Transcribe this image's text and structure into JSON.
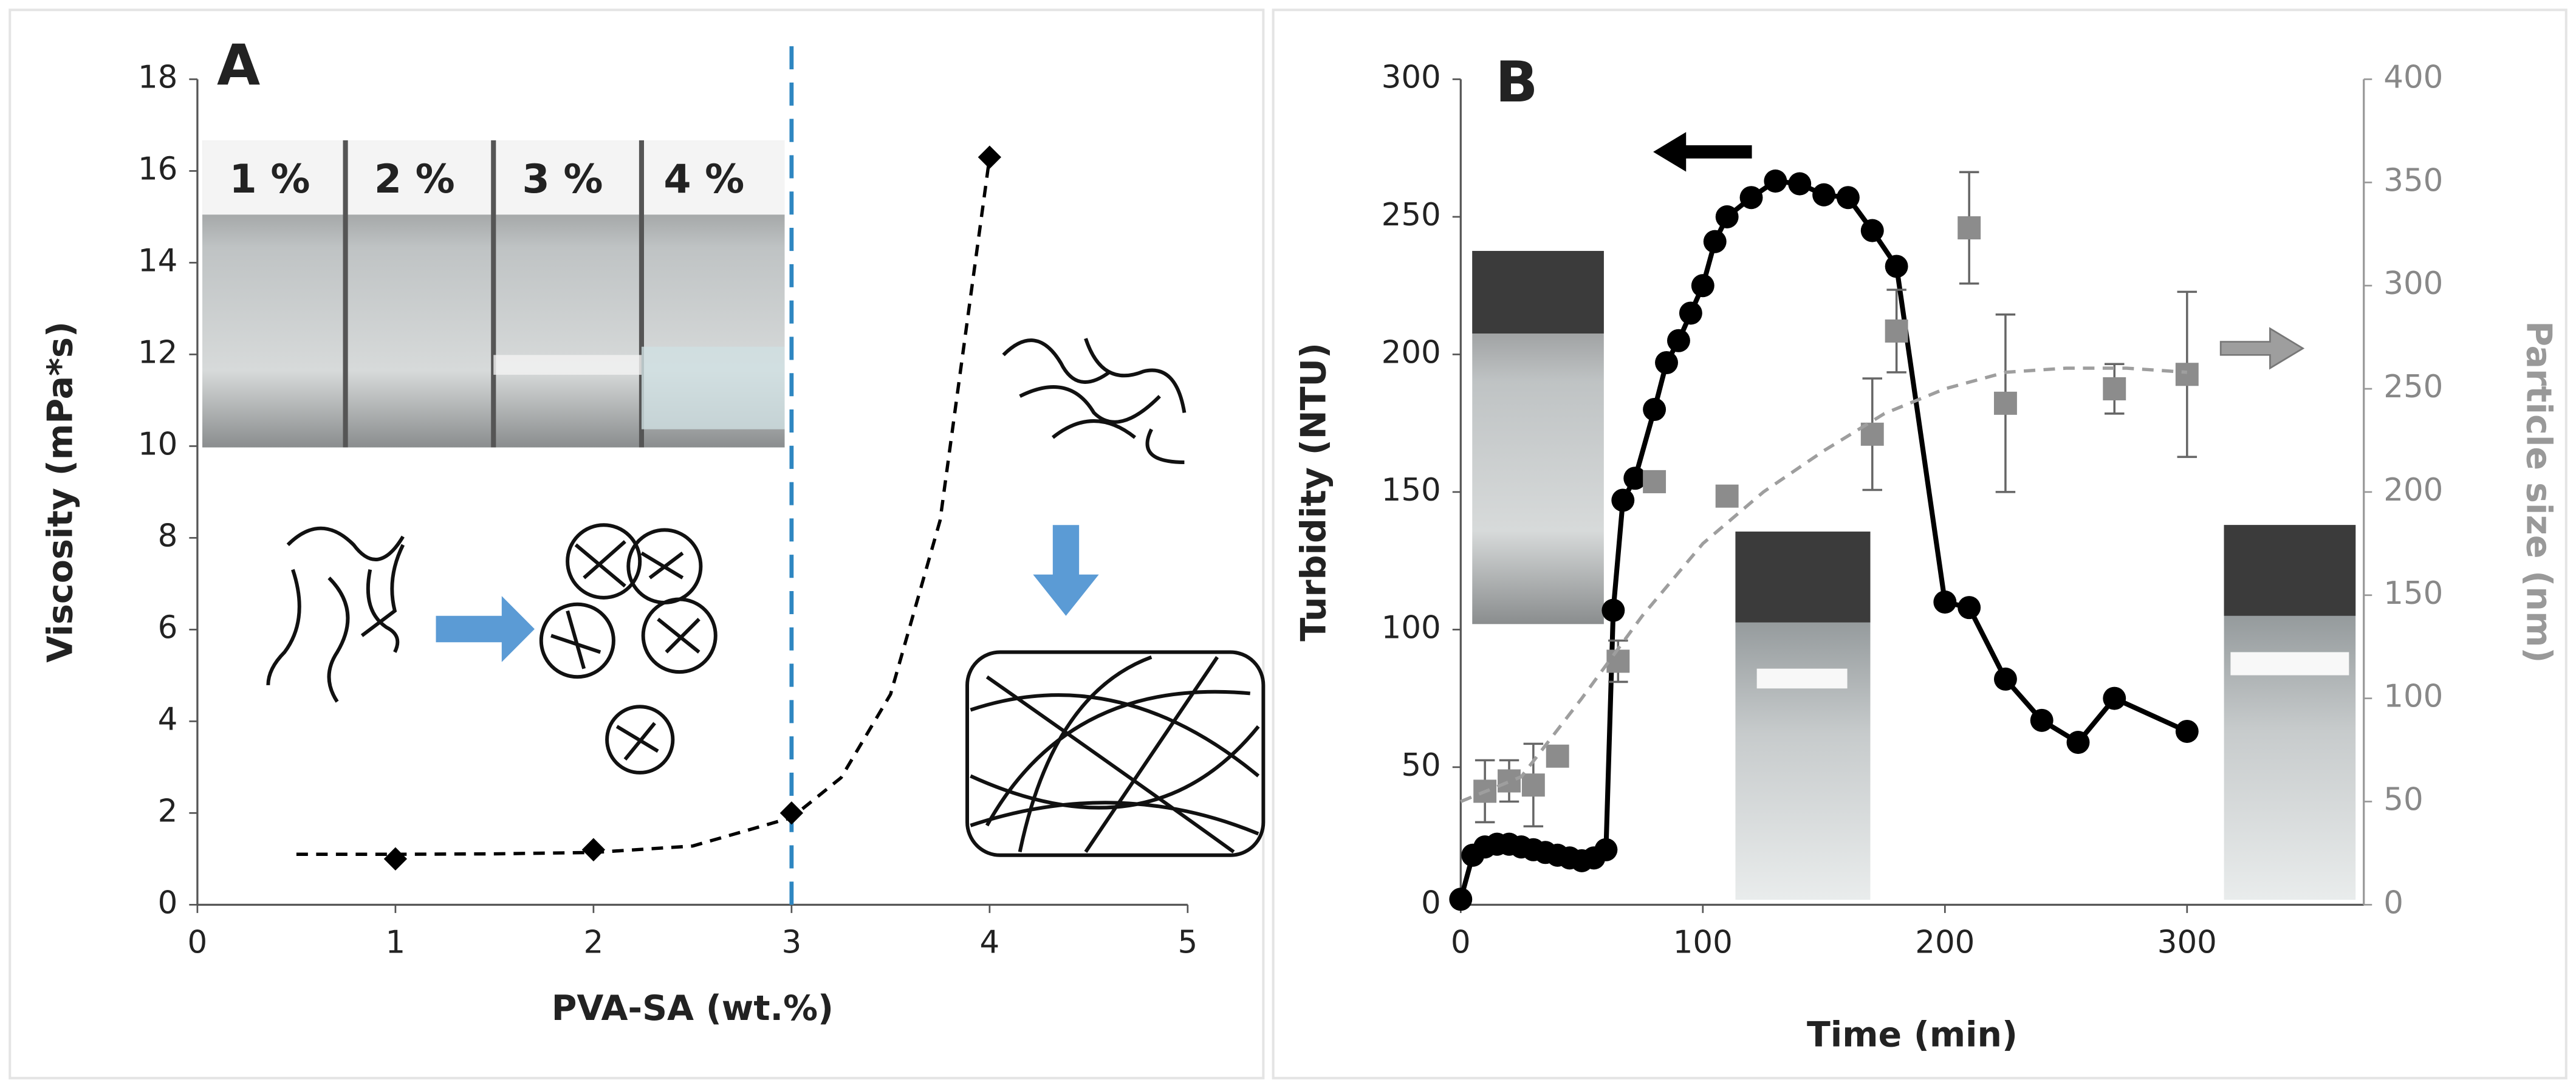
{
  "chart_data": [
    {
      "type": "scatter",
      "panel_label": "A",
      "xlabel": "PVA-SA (wt.%)",
      "ylabel": "Viscosity (mPa*s)",
      "xlim": [
        0,
        5
      ],
      "xticks": [
        0,
        1,
        2,
        3,
        4,
        5
      ],
      "ylim": [
        0,
        18
      ],
      "yticks": [
        0,
        2,
        4,
        6,
        8,
        10,
        12,
        14,
        16,
        18
      ],
      "series": [
        {
          "color": "#000000",
          "marker": "diamond",
          "line_style": "none",
          "x": [
            1,
            2,
            3,
            4
          ],
          "values": [
            1.0,
            1.2,
            2.0,
            16.3
          ]
        },
        {
          "color": "#000000",
          "marker": "none",
          "line_style": "dashed",
          "x": [
            0.5,
            1,
            1.5,
            2,
            2.5,
            3,
            3.25,
            3.5,
            3.75,
            4
          ],
          "values": [
            1.1,
            1.1,
            1.11,
            1.14,
            1.28,
            1.9,
            2.77,
            4.59,
            8.38,
            16.3
          ]
        }
      ],
      "reference_line": {
        "x": 3,
        "color": "#2e86c1"
      },
      "image_labels": [
        "1 %",
        "2 %",
        "3 %",
        "4 %"
      ]
    },
    {
      "type": "line",
      "panel_label": "B",
      "xlabel": "Time (min)",
      "ylabel": "Turbidity (NTU)",
      "y2label": "Particle size (nm)",
      "xlim": [
        0,
        373
      ],
      "xticks": [
        0,
        100,
        200,
        300
      ],
      "ylim": [
        0,
        300
      ],
      "yticks": [
        0,
        50,
        100,
        150,
        200,
        250,
        300
      ],
      "y2lim": [
        0,
        400
      ],
      "y2ticks": [
        0,
        50,
        100,
        150,
        200,
        250,
        300,
        350,
        400
      ],
      "series": [
        {
          "color": "#000000",
          "marker": "circle",
          "line_style": "solid",
          "x": [
            0,
            5,
            10,
            15,
            20,
            25,
            30,
            35,
            40,
            45,
            50,
            55,
            60,
            63,
            67,
            72,
            80,
            85,
            90,
            95,
            100,
            105,
            110,
            120,
            130,
            140,
            150,
            160,
            170,
            180,
            200,
            210,
            225,
            240,
            255,
            270,
            300
          ],
          "values": [
            2,
            18,
            21,
            22,
            22,
            21,
            20,
            19,
            18,
            17,
            16,
            17,
            20,
            107,
            147,
            155,
            180,
            197,
            205,
            215,
            225,
            241,
            250,
            257,
            263,
            262,
            258,
            257,
            245,
            232,
            110,
            108,
            82,
            67,
            59,
            75,
            63
          ]
        },
        {
          "color": "#8c8c8c",
          "marker": "square",
          "line_style": "none",
          "axis": "y2",
          "x": [
            10,
            20,
            30,
            40,
            65,
            80,
            110,
            170,
            180,
            210,
            225,
            270,
            300
          ],
          "values": [
            55,
            60,
            58,
            72,
            118,
            205,
            198,
            228,
            278,
            328,
            243,
            250,
            257
          ],
          "errors": [
            15,
            10,
            20,
            3,
            10,
            5,
            3,
            27,
            20,
            27,
            43,
            12,
            40
          ]
        },
        {
          "color": "#9e9e9e",
          "marker": "none",
          "line_style": "dashed",
          "axis": "y2",
          "x": [
            0,
            25,
            50,
            75,
            100,
            125,
            150,
            175,
            200,
            225,
            250,
            275,
            300
          ],
          "values": [
            50,
            62,
            100,
            140,
            175,
            200,
            220,
            238,
            250,
            258,
            260,
            260,
            258
          ]
        }
      ]
    }
  ]
}
